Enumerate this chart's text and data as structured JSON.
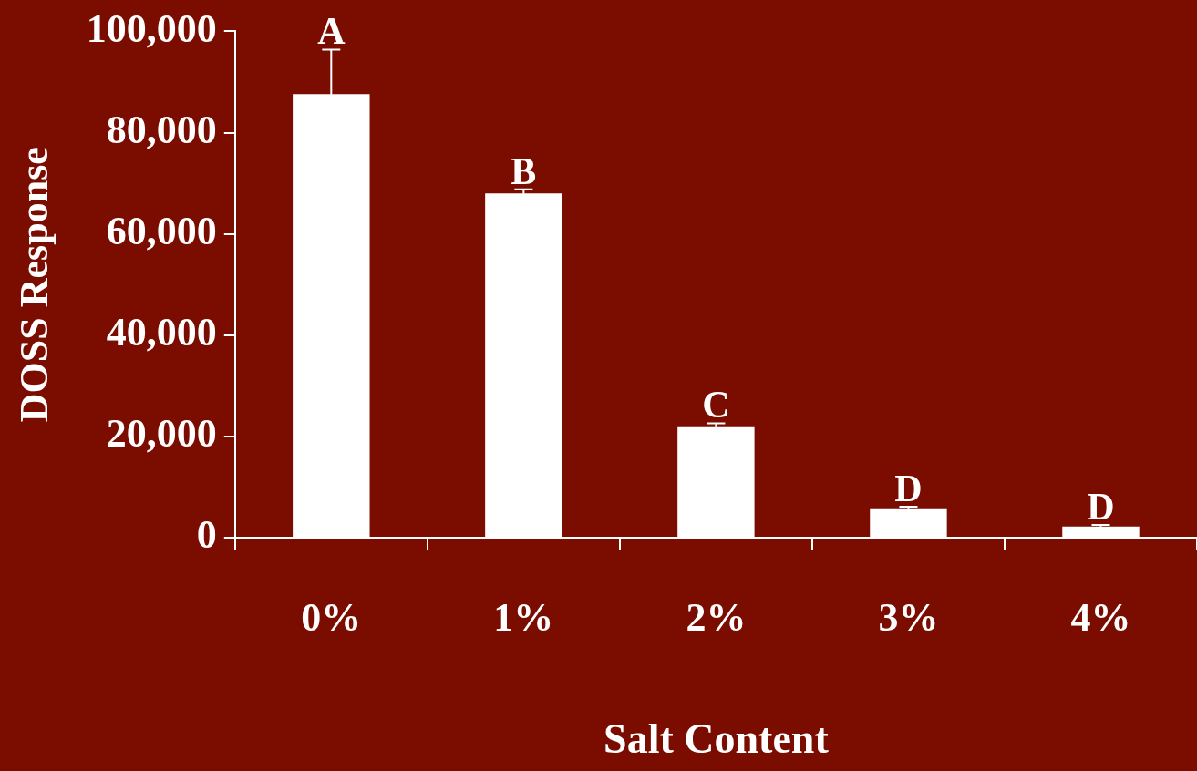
{
  "chart_data": {
    "type": "bar",
    "xlabel": "Salt Content",
    "ylabel": "DOSS Response",
    "categories": [
      "0%",
      "1%",
      "2%",
      "3%",
      "4%"
    ],
    "values": [
      87600,
      68000,
      22000,
      5800,
      2200
    ],
    "errors": [
      8800,
      800,
      600,
      300,
      300
    ],
    "color": "#ffffff",
    "ylim": [
      0,
      100000
    ],
    "yticks": [
      {
        "value": 0,
        "label": "0"
      },
      {
        "value": 20000,
        "label": "20,000"
      },
      {
        "value": 40000,
        "label": "40,000"
      },
      {
        "value": 60000,
        "label": "60,000"
      },
      {
        "value": 80000,
        "label": "80,000"
      },
      {
        "value": 100000,
        "label": "100,000"
      }
    ],
    "annotations": [
      {
        "text": "A",
        "x": "0%",
        "y": 96400
      },
      {
        "text": "B",
        "x": "1%",
        "y": 68800
      },
      {
        "text": "C",
        "x": "2%",
        "y": 22600
      },
      {
        "text": "D",
        "x": "3%",
        "y": 6100
      },
      {
        "text": "D",
        "x": "4%",
        "y": 2500
      }
    ],
    "grid": false
  }
}
